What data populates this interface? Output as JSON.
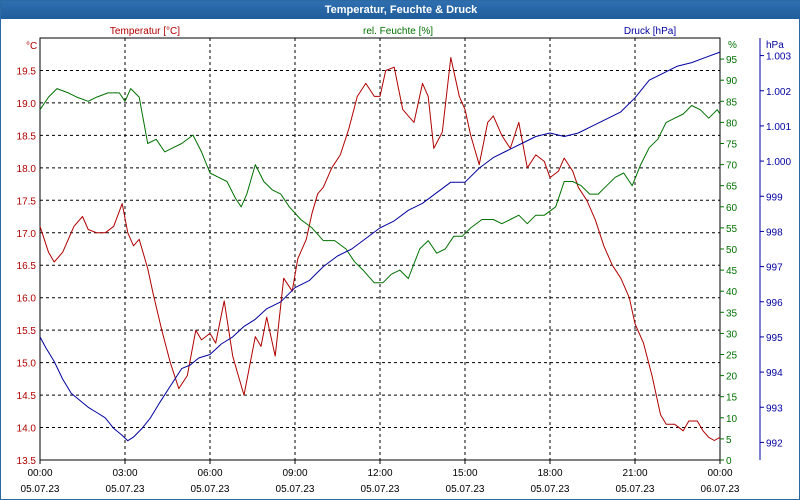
{
  "window": {
    "title": "Temperatur, Feuchte & Druck"
  },
  "colors": {
    "temperature": "#b00000",
    "humidity": "#007000",
    "pressure": "#0000a0",
    "grid": "#000000"
  },
  "chart_data": {
    "type": "line",
    "title": "Temperatur, Feuchte & Druck",
    "legend": [
      "Temperatur [°C]",
      "rel. Feuchte [%]",
      "Druck [hPa]"
    ],
    "grid": true,
    "x_ticks": [
      {
        "time": "00:00",
        "date": "05.07.23"
      },
      {
        "time": "03:00",
        "date": "05.07.23"
      },
      {
        "time": "06:00",
        "date": "05.07.23"
      },
      {
        "time": "09:00",
        "date": "05.07.23"
      },
      {
        "time": "12:00",
        "date": "05.07.23"
      },
      {
        "time": "15:00",
        "date": "05.07.23"
      },
      {
        "time": "18:00",
        "date": "05.07.23"
      },
      {
        "time": "21:00",
        "date": "05.07.23"
      },
      {
        "time": "00:00",
        "date": "06.07.23"
      }
    ],
    "xlim": [
      0,
      24
    ],
    "axes": {
      "temperature": {
        "unit": "°C",
        "ylim": [
          13.5,
          20.0
        ],
        "ticks": [
          "13.5",
          "14.0",
          "14.5",
          "15.0",
          "15.5",
          "16.0",
          "16.5",
          "17.0",
          "17.5",
          "18.0",
          "18.5",
          "19.0",
          "19.5"
        ]
      },
      "humidity": {
        "unit": "%",
        "ylim": [
          0,
          100
        ],
        "ticks": [
          "0",
          "5",
          "10",
          "15",
          "20",
          "25",
          "30",
          "35",
          "40",
          "45",
          "50",
          "55",
          "60",
          "65",
          "70",
          "75",
          "80",
          "85",
          "90",
          "95"
        ]
      },
      "pressure": {
        "unit": "hPa",
        "ylim": [
          991.5,
          1003.5
        ],
        "ticks": [
          "992",
          "993",
          "994",
          "995",
          "996",
          "997",
          "998",
          "999",
          "1.000",
          "1.001",
          "1.002",
          "1.003"
        ]
      }
    },
    "series": [
      {
        "name": "Temperatur [°C]",
        "axis": "temperature",
        "x": [
          0,
          0.3,
          0.5,
          0.8,
          1.0,
          1.2,
          1.5,
          1.7,
          2.0,
          2.3,
          2.6,
          2.9,
          3.1,
          3.3,
          3.5,
          3.8,
          4.0,
          4.3,
          4.6,
          4.9,
          5.2,
          5.5,
          5.7,
          6.0,
          6.2,
          6.5,
          6.8,
          7.0,
          7.2,
          7.6,
          7.8,
          8.0,
          8.3,
          8.6,
          8.9,
          9.1,
          9.4,
          9.6,
          9.8,
          10.0,
          10.3,
          10.6,
          10.9,
          11.2,
          11.5,
          11.8,
          12.0,
          12.2,
          12.5,
          12.8,
          13.0,
          13.2,
          13.5,
          13.7,
          13.9,
          14.2,
          14.5,
          14.8,
          15.0,
          15.2,
          15.5,
          15.8,
          16.0,
          16.3,
          16.6,
          16.9,
          17.2,
          17.5,
          17.8,
          18.0,
          18.3,
          18.5,
          18.8,
          19.0,
          19.3,
          19.6,
          19.9,
          20.2,
          20.5,
          20.8,
          21.0,
          21.3,
          21.6,
          21.9,
          22.1,
          22.4,
          22.7,
          22.9,
          23.2,
          23.4,
          23.6,
          23.8,
          24.0
        ],
        "values": [
          17.1,
          16.7,
          16.55,
          16.7,
          16.9,
          17.1,
          17.25,
          17.05,
          17.0,
          17.0,
          17.1,
          17.45,
          17.0,
          16.8,
          16.9,
          16.45,
          16.05,
          15.5,
          15.0,
          14.6,
          14.8,
          15.5,
          15.35,
          15.45,
          15.3,
          15.95,
          15.1,
          14.8,
          14.5,
          15.4,
          15.25,
          15.7,
          15.1,
          16.3,
          16.1,
          16.6,
          16.9,
          17.3,
          17.6,
          17.7,
          18.0,
          18.2,
          18.6,
          19.1,
          19.3,
          19.1,
          19.1,
          19.5,
          19.55,
          18.9,
          18.8,
          18.7,
          19.3,
          19.1,
          18.3,
          18.55,
          19.7,
          19.1,
          18.9,
          18.5,
          18.05,
          18.7,
          18.8,
          18.5,
          18.3,
          18.7,
          18.0,
          18.2,
          18.1,
          17.85,
          17.95,
          18.15,
          17.95,
          17.7,
          17.5,
          17.2,
          16.8,
          16.5,
          16.3,
          16.0,
          15.6,
          15.3,
          14.8,
          14.2,
          14.05,
          14.05,
          13.95,
          14.1,
          14.1,
          13.95,
          13.85,
          13.8,
          13.85
        ]
      },
      {
        "name": "rel. Feuchte [%]",
        "axis": "humidity",
        "x": [
          0,
          0.3,
          0.6,
          1.0,
          1.3,
          1.7,
          2.0,
          2.4,
          2.8,
          3.0,
          3.2,
          3.5,
          3.8,
          4.1,
          4.4,
          4.7,
          5.0,
          5.4,
          5.7,
          6.0,
          6.3,
          6.6,
          6.9,
          7.1,
          7.3,
          7.6,
          7.9,
          8.2,
          8.5,
          8.8,
          9.2,
          9.6,
          10.0,
          10.4,
          10.8,
          11.1,
          11.4,
          11.8,
          12.1,
          12.4,
          12.7,
          13.0,
          13.4,
          13.7,
          14.0,
          14.3,
          14.6,
          14.9,
          15.2,
          15.6,
          16.0,
          16.3,
          16.6,
          16.9,
          17.2,
          17.5,
          17.8,
          18.2,
          18.5,
          18.8,
          19.1,
          19.4,
          19.7,
          20.0,
          20.3,
          20.6,
          20.9,
          21.2,
          21.5,
          21.8,
          22.1,
          22.4,
          22.7,
          23.0,
          23.3,
          23.6,
          23.9,
          24.0
        ],
        "values": [
          83,
          86,
          88,
          87,
          86,
          85,
          86,
          87,
          87,
          85,
          88,
          86,
          75,
          76,
          73,
          74,
          75,
          77,
          73,
          68,
          67,
          66,
          62,
          60,
          63,
          70,
          66,
          64,
          63,
          60,
          57,
          55,
          52,
          52,
          50,
          47,
          45,
          42,
          42,
          44,
          45,
          43,
          50,
          52,
          49,
          50,
          53,
          53,
          55,
          57,
          57,
          56,
          57,
          58,
          56,
          58,
          58,
          60,
          66,
          66,
          65,
          63,
          63,
          65,
          67,
          68,
          65,
          70,
          74,
          76,
          80,
          81,
          82,
          84,
          83,
          81,
          83,
          82
        ]
      },
      {
        "name": "Druck [hPa]",
        "axis": "pressure",
        "x": [
          0,
          0.2,
          0.5,
          0.8,
          1.1,
          1.4,
          1.7,
          2.0,
          2.3,
          2.6,
          2.9,
          3.1,
          3.3,
          3.6,
          3.9,
          4.2,
          4.6,
          5.0,
          5.3,
          5.6,
          6.0,
          6.4,
          6.8,
          7.2,
          7.6,
          8.0,
          8.5,
          9.0,
          9.5,
          10.0,
          10.5,
          11.0,
          11.5,
          12.0,
          12.5,
          13.0,
          13.5,
          14.0,
          14.5,
          15.0,
          15.5,
          16.0,
          16.5,
          17.0,
          17.5,
          18.0,
          18.5,
          19.0,
          19.5,
          20.0,
          20.5,
          21.0,
          21.5,
          22.0,
          22.5,
          23.0,
          23.5,
          24.0
        ],
        "values": [
          995.0,
          994.7,
          994.3,
          993.8,
          993.4,
          993.2,
          993.0,
          992.85,
          992.7,
          992.4,
          992.2,
          992.05,
          992.15,
          992.4,
          992.7,
          993.1,
          993.6,
          994.1,
          994.2,
          994.4,
          994.5,
          994.8,
          995.0,
          995.3,
          995.5,
          995.8,
          996.0,
          996.4,
          996.6,
          997.0,
          997.3,
          997.5,
          997.8,
          998.1,
          998.3,
          998.6,
          998.8,
          999.1,
          999.4,
          999.4,
          999.8,
          1000.1,
          1000.3,
          1000.5,
          1000.7,
          1000.8,
          1000.7,
          1000.8,
          1001.0,
          1001.2,
          1001.4,
          1001.8,
          1002.3,
          1002.5,
          1002.7,
          1002.8,
          1002.95,
          1003.1
        ]
      }
    ]
  }
}
